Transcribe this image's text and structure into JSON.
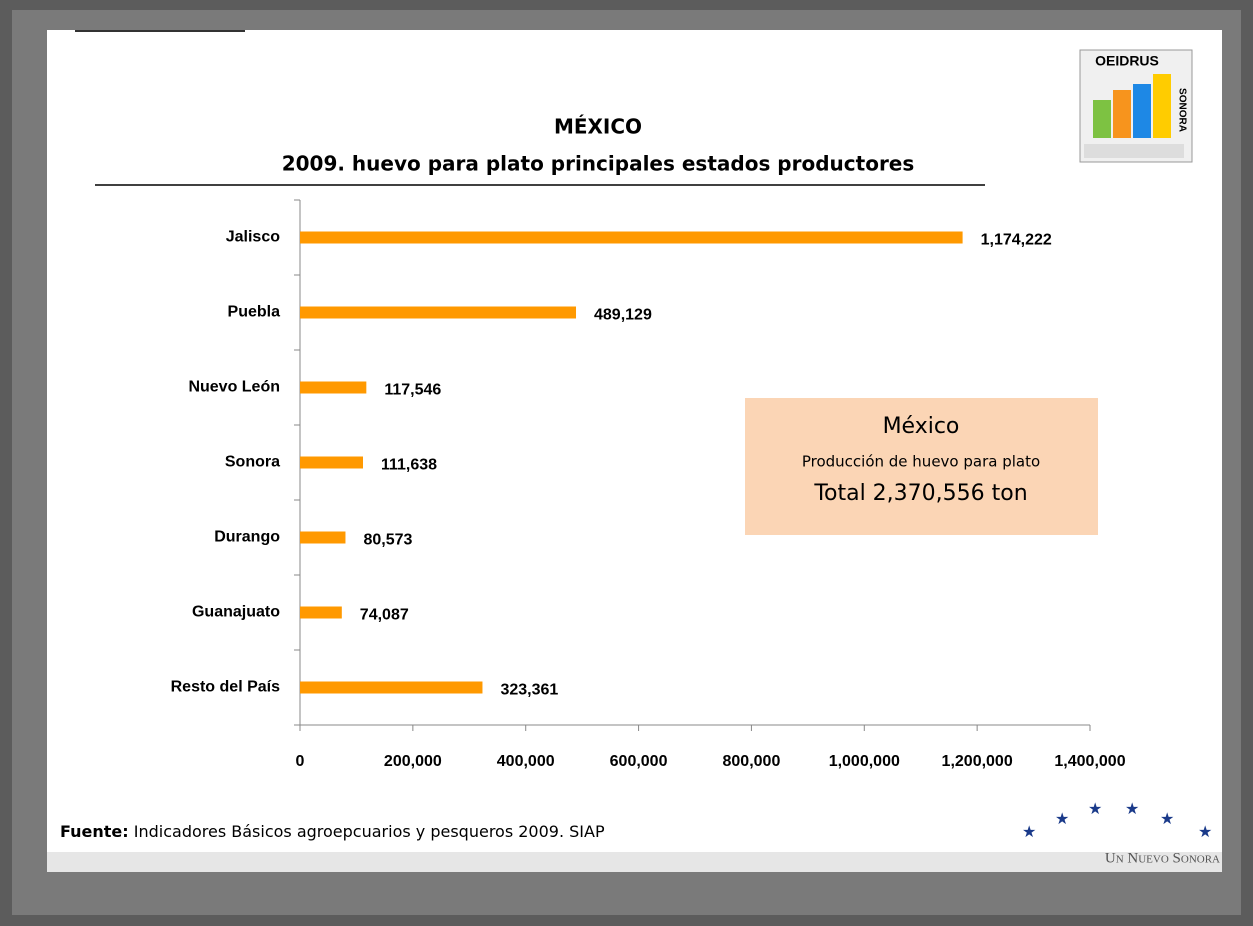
{
  "chart_data": {
    "type": "hbar",
    "title": "MÉXICO",
    "subtitle": "2009. huevo para plato  principales estados productores",
    "categories": [
      "Jalisco",
      "Puebla",
      "Nuevo León",
      "Sonora",
      "Durango",
      "Guanajuato",
      "Resto del País"
    ],
    "values": [
      1174222,
      489129,
      117546,
      111638,
      80573,
      74087,
      323361
    ],
    "value_labels": [
      "1,174,222",
      "489,129",
      "117,546",
      "111,638",
      "80,573",
      "74,087",
      "323,361"
    ],
    "color": "#ff9900",
    "xlim": [
      0,
      1400000
    ],
    "xticks": [
      0,
      {
        "value": 200000,
        "label": "200,000"
      },
      {
        "value": 400000,
        "label": "400,000"
      },
      {
        "value": 600000,
        "label": "600,000"
      },
      {
        "value": 800000,
        "label": "800,000"
      },
      {
        "value": 1000000,
        "label": "1,000,000"
      },
      {
        "value": 1200000,
        "label": "1,200,000"
      },
      {
        "value": 1400000,
        "label": "1,400,000"
      }
    ],
    "grid": false,
    "annotation": [
      "México",
      "Producción de huevo para plato",
      "Total 2,370,556 ton"
    ]
  },
  "source": {
    "label": "Fuente:",
    "text": " Indicadores Básicos agroepcuarios y pesqueros 2009. SIAP"
  },
  "logo": {
    "name": "OEIDRUS",
    "region": "SONORA"
  },
  "slogan": "Un Nuevo Sonora"
}
